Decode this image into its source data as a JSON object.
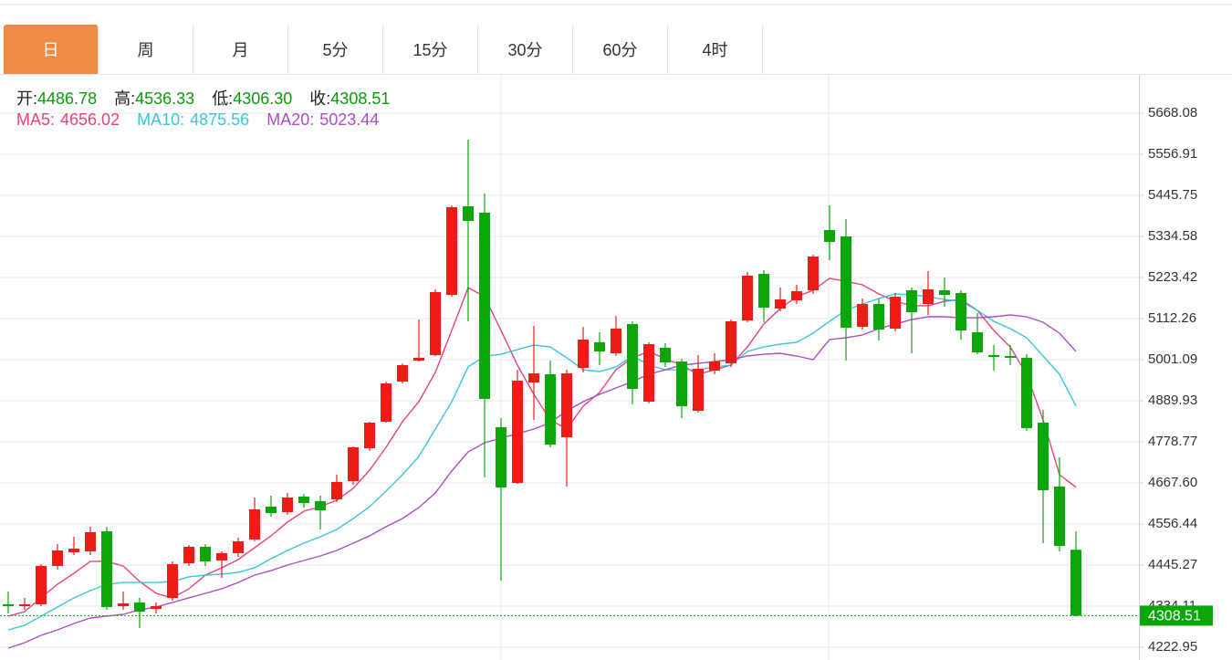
{
  "chart_data": {
    "type": "candlestick",
    "tabs": [
      "日",
      "周",
      "月",
      "5分",
      "15分",
      "30分",
      "60分",
      "4时"
    ],
    "active_tab": 0,
    "readout": {
      "labels": [
        "开:",
        "高:",
        "低:",
        "收:"
      ],
      "values": [
        "4486.78",
        "4536.33",
        "4306.30",
        "4308.51"
      ]
    },
    "up_color": "#ef1b17",
    "down_color": "#0aa60a",
    "candles": {
      "open": [
        4339.2,
        4334.2,
        4339.2,
        4442.9,
        4480.0,
        4482.4,
        4536.8,
        4334.2,
        4344.1,
        4326.8,
        4356.5,
        4450.3,
        4494.8,
        4457.7,
        4477.5,
        4514.5,
        4603.4,
        4588.6,
        4630.6,
        4618.3,
        4623.2,
        4672.6,
        4761.6,
        4833.2,
        4941.9,
        4998.6,
        5013.5,
        5176.5,
        5416.1,
        5398.8,
        4818.3,
        4667.7,
        4939.4,
        4961.6,
        4791.2,
        4978.9,
        5048.1,
        5018.4,
        5097.4,
        4887.5,
        5033.2,
        4996.2,
        4862.8,
        4971.5,
        4991.2,
        5107.3,
        5233.3,
        5139.5,
        5161.7,
        5188.8,
        5351.9,
        5334.6,
        5090.0,
        5151.8,
        5085.1,
        5188.8,
        5151.8,
        5188.8,
        5181.4,
        5075.2,
        5013.5,
        5011.0,
        5006.1,
        4830.7,
        4657.8,
        4486.78
      ],
      "high": [
        4373.7,
        4356.5,
        4447.8,
        4502.2,
        4521.9,
        4549.1,
        4549.1,
        4373.7,
        4356.5,
        4344.1,
        4455.3,
        4499.7,
        4502.2,
        4482.4,
        4519.5,
        4628.2,
        4633.1,
        4640.5,
        4638.0,
        4633.1,
        4689.9,
        4766.5,
        4833.2,
        4941.9,
        4991.2,
        5109.8,
        5191.3,
        5418.6,
        5596.4,
        5450.7,
        4843.0,
        4973.9,
        5092.5,
        4998.6,
        4973.9,
        5090.0,
        5075.2,
        5119.7,
        5104.9,
        5048.1,
        5045.6,
        5003.6,
        5013.5,
        5018.4,
        5109.8,
        5238.2,
        5243.2,
        5196.3,
        5203.7,
        5285.2,
        5418.6,
        5381.5,
        5166.6,
        5166.6,
        5181.4,
        5196.3,
        5240.7,
        5223.4,
        5188.8,
        5127.1,
        5040.6,
        5040.6,
        5015.9,
        4865.3,
        4736.8,
        4536.33
      ],
      "low": [
        4314.5,
        4324.3,
        4334.2,
        4433.0,
        4472.5,
        4472.5,
        4324.3,
        4324.3,
        4274.9,
        4314.5,
        4349.0,
        4442.9,
        4442.9,
        4410.8,
        4467.6,
        4509.6,
        4576.1,
        4581.2,
        4601.0,
        4541.7,
        4615.8,
        4662.7,
        4754.1,
        4830.7,
        4936.9,
        4996.2,
        5011.0,
        5171.6,
        5104.9,
        4682.5,
        4403.4,
        4665.2,
        4838.1,
        4764.0,
        4657.8,
        4966.6,
        4986.3,
        5011.0,
        4880.1,
        4882.6,
        4981.4,
        4843.0,
        4857.9,
        4961.6,
        4981.4,
        5102.4,
        5102.4,
        5132.0,
        5151.8,
        5179.0,
        5270.4,
        4998.6,
        5082.6,
        5053.0,
        5077.7,
        5018.4,
        5122.2,
        5144.4,
        5055.5,
        5015.9,
        4971.5,
        4986.3,
        4808.5,
        4504.7,
        4482.4,
        4306.3
      ],
      "close": [
        4334.2,
        4339.2,
        4442.9,
        4484.9,
        4489.8,
        4534.3,
        4331.8,
        4341.6,
        4319.4,
        4334.2,
        4447.8,
        4494.8,
        4455.3,
        4477.5,
        4509.6,
        4596.0,
        4586.0,
        4628.2,
        4613.3,
        4593.6,
        4670.1,
        4764.0,
        4830.7,
        4936.9,
        4986.3,
        5006.1,
        5183.9,
        5413.6,
        5376.6,
        4894.9,
        4655.3,
        4944.3,
        4964.1,
        4771.4,
        4964.1,
        5055.5,
        5023.4,
        5085.1,
        4922.1,
        5043.1,
        4993.7,
        4875.2,
        4976.4,
        4996.2,
        5104.9,
        5228.4,
        5141.9,
        5164.1,
        5186.4,
        5280.2,
        5319.8,
        5087.6,
        5151.8,
        5082.6,
        5171.6,
        5129.6,
        5191.3,
        5176.5,
        5080.2,
        5020.9,
        5008.6,
        5006.1,
        4815.9,
        4647.9,
        4497.2,
        4308.51
      ]
    },
    "series": [
      {
        "name": "MA5:",
        "color": "#e8447c",
        "values": [
          4307.1,
          4319.4,
          4356.5,
          4393.5,
          4423.1,
          4455.3,
          4455.3,
          4442.9,
          4400.9,
          4368.8,
          4356.5,
          4381.2,
          4418.2,
          4438.0,
          4460.2,
          4492.3,
          4524.4,
          4561.5,
          4591.1,
          4603.4,
          4620.7,
          4652.9,
          4702.2,
          4764.0,
          4833.2,
          4887.5,
          4966.6,
          5080.2,
          5196.3,
          5171.6,
          5080.2,
          4986.3,
          4907.3,
          4838.1,
          4813.4,
          4875.2,
          4912.2,
          4973.9,
          5006.1,
          5023.4,
          5003.6,
          4986.3,
          4961.6,
          4973.9,
          4986.3,
          5035.7,
          5097.4,
          5139.5,
          5171.6,
          5188.8,
          5221.0,
          5213.5,
          5203.7,
          5179.0,
          5159.2,
          5146.9,
          5146.9,
          5159.2,
          5164.1,
          5134.5,
          5080.2,
          5035.7,
          4961.6,
          4838.1,
          4689.9,
          4656.02
        ]
      },
      {
        "name": "MA10:",
        "color": "#3cc5d7",
        "values": [
          4270.0,
          4282.4,
          4307.1,
          4331.8,
          4356.5,
          4376.2,
          4393.5,
          4398.4,
          4398.4,
          4398.4,
          4400.9,
          4413.3,
          4418.2,
          4420.7,
          4425.6,
          4438.0,
          4462.7,
          4484.9,
          4504.7,
          4522.0,
          4541.7,
          4571.3,
          4603.4,
          4645.4,
          4689.9,
          4739.3,
          4813.4,
          4887.5,
          4981.4,
          5011.0,
          5015.9,
          5028.3,
          5040.6,
          5035.7,
          5006.1,
          4973.9,
          4969.0,
          4981.4,
          5011.0,
          4986.3,
          4973.9,
          4973.9,
          4973.9,
          4981.4,
          4986.3,
          5023.4,
          5035.7,
          5043.1,
          5048.1,
          5072.8,
          5104.9,
          5134.5,
          5151.8,
          5166.6,
          5179.0,
          5176.5,
          5171.6,
          5164.1,
          5159.2,
          5134.5,
          5104.9,
          5085.1,
          5060.4,
          5011.0,
          4961.6,
          4875.56
        ]
      },
      {
        "name": "MA20:",
        "color": "#aa4fc5",
        "values": [
          4220.6,
          4235.4,
          4255.2,
          4270.0,
          4287.3,
          4302.1,
          4307.1,
          4312.0,
          4324.3,
          4331.8,
          4344.1,
          4356.5,
          4368.8,
          4381.2,
          4398.4,
          4418.2,
          4430.5,
          4445.4,
          4457.7,
          4470.1,
          4484.9,
          4504.7,
          4524.4,
          4549.1,
          4571.3,
          4601.0,
          4640.5,
          4699.8,
          4751.6,
          4776.4,
          4788.7,
          4801.0,
          4813.4,
          4830.7,
          4862.8,
          4887.5,
          4907.3,
          4924.6,
          4941.9,
          4961.6,
          4973.9,
          4986.3,
          4991.2,
          4996.2,
          5001.1,
          5011.0,
          5015.9,
          5018.4,
          5011.0,
          5001.1,
          5055.5,
          5060.4,
          5067.8,
          5085.1,
          5097.4,
          5109.8,
          5117.2,
          5117.2,
          5114.7,
          5114.7,
          5117.2,
          5122.2,
          5117.2,
          5102.4,
          5072.8,
          5023.44
        ]
      }
    ],
    "ylim": [
      4188.49,
      5771.76
    ],
    "yticks": [
      5668.08,
      5556.91,
      5445.75,
      5334.58,
      5223.42,
      5112.26,
      5001.09,
      4889.93,
      4778.77,
      {
        "value": 4667.6,
        "label": "4667.60"
      },
      4556.44,
      4445.27,
      4334.11,
      4222.95
    ],
    "grid": true,
    "last_price_color": "#0aa60a"
  }
}
